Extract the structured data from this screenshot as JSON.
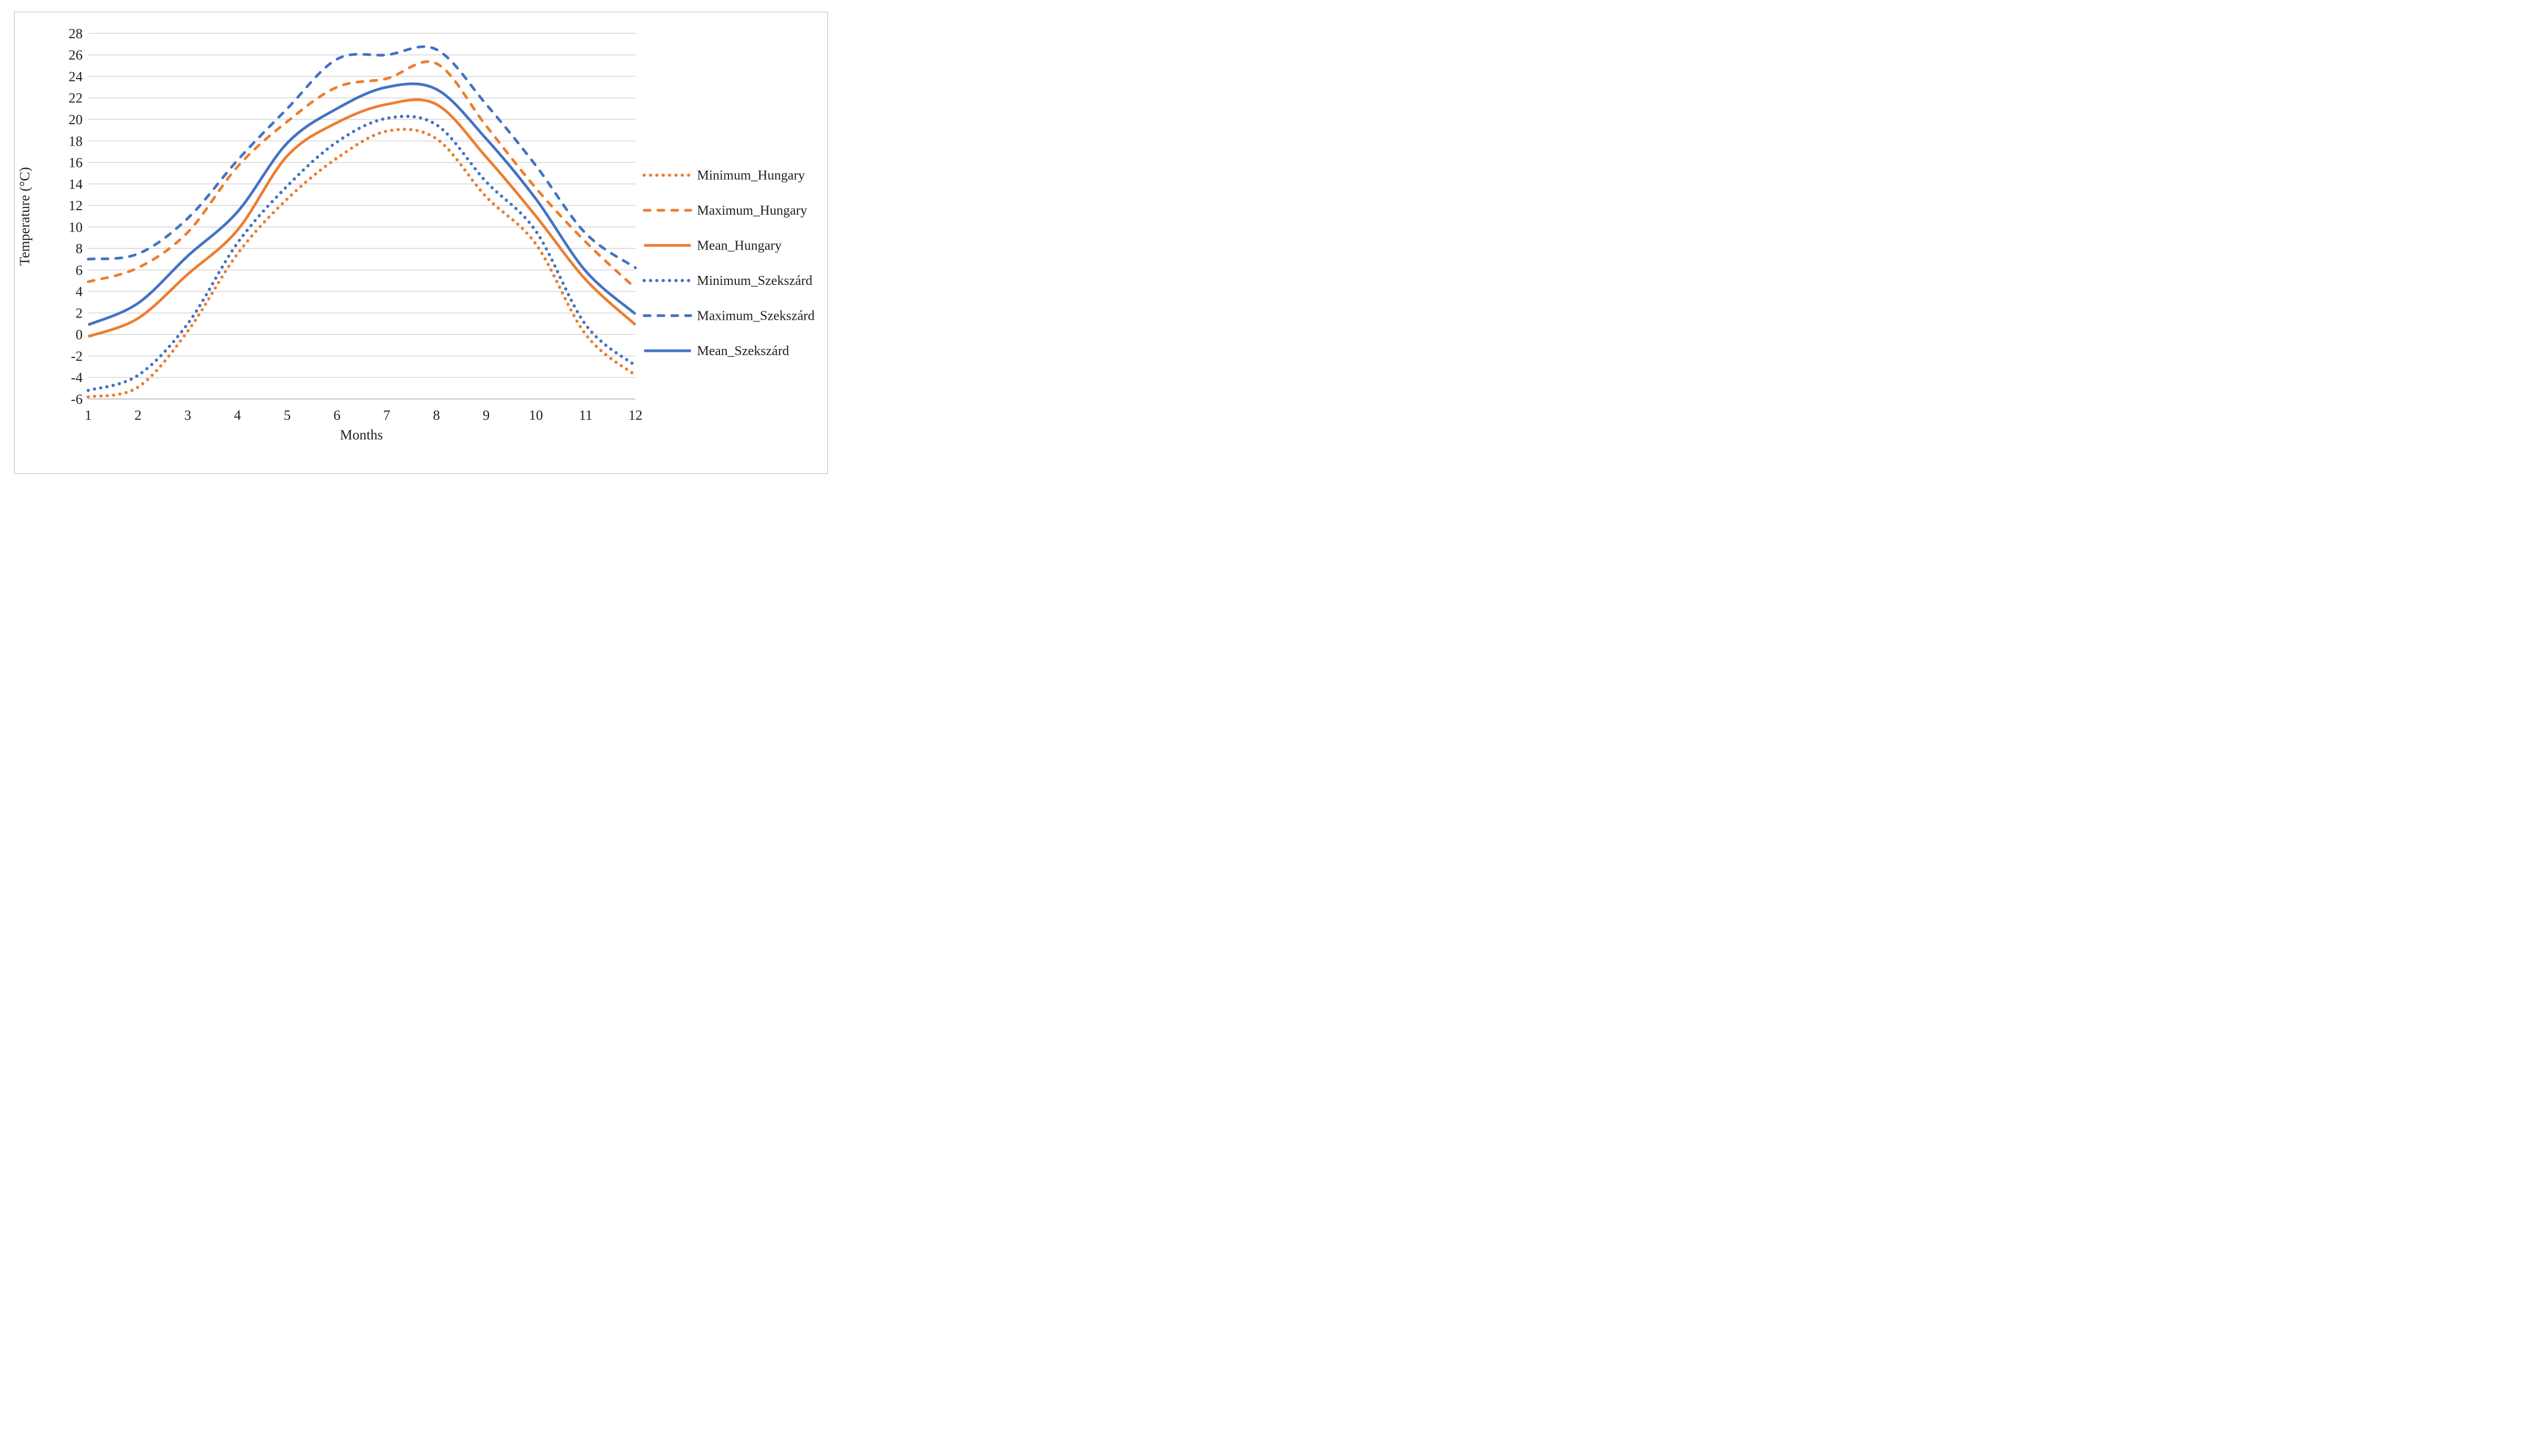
{
  "chart_data": {
    "type": "line",
    "title": "",
    "xlabel": "Months",
    "ylabel": "Temperature (°C)",
    "x": [
      1,
      2,
      3,
      4,
      5,
      6,
      7,
      8,
      9,
      10,
      11,
      12
    ],
    "x_tick_labels": [
      "1",
      "2",
      "3",
      "4",
      "5",
      "6",
      "7",
      "8",
      "9",
      "10",
      "11",
      "12"
    ],
    "y_tick_labels": [
      "28",
      "26",
      "24",
      "22",
      "20",
      "18",
      "16",
      "14",
      "12",
      "10",
      "8",
      "6",
      "4",
      "2",
      "0",
      "-2",
      "-4",
      "-6"
    ],
    "ylim": [
      -6,
      28
    ],
    "y_step": 2,
    "grid": true,
    "legend_position": "right",
    "series": [
      {
        "name": "Minimum_Hungary",
        "color": "#ED7D31",
        "style": "dotted",
        "values": [
          -5.8,
          -4.9,
          0.3,
          7.5,
          12.6,
          16.4,
          18.9,
          18.2,
          12.8,
          8.4,
          0.0,
          -3.8
        ]
      },
      {
        "name": "Maximum_Hungary",
        "color": "#ED7D31",
        "style": "dashed",
        "values": [
          4.9,
          6.2,
          9.5,
          15.6,
          19.8,
          23.0,
          23.8,
          25.2,
          19.4,
          13.6,
          8.6,
          4.3
        ]
      },
      {
        "name": "Mean_Hungary",
        "color": "#ED7D31",
        "style": "solid",
        "values": [
          -0.2,
          1.5,
          5.6,
          9.7,
          16.6,
          19.7,
          21.4,
          21.4,
          16.5,
          11.0,
          5.1,
          0.9
        ]
      },
      {
        "name": "Minimum_Szekszárd",
        "color": "#4472C4",
        "style": "dotted",
        "values": [
          -5.2,
          -3.8,
          1.0,
          8.5,
          13.8,
          17.9,
          20.1,
          19.5,
          14.2,
          9.6,
          0.9,
          -2.9
        ]
      },
      {
        "name": "Maximum_Szekszárd",
        "color": "#4472C4",
        "style": "dashed",
        "values": [
          7.0,
          7.5,
          10.8,
          16.2,
          21.0,
          25.6,
          26.0,
          26.5,
          21.4,
          15.7,
          9.4,
          6.2
        ]
      },
      {
        "name": "Mean_Szekszárd",
        "color": "#4472C4",
        "style": "solid",
        "values": [
          0.9,
          2.9,
          7.3,
          11.4,
          17.8,
          21.0,
          23.0,
          22.8,
          18.2,
          12.6,
          5.9,
          1.9
        ]
      }
    ],
    "colors": {
      "hungary_orange": "#ED7D31",
      "szekszard_blue": "#4472C4",
      "gridline": "#D9D9D9",
      "axis_line": "#BFBFBF",
      "text": "#1f1f1f"
    }
  }
}
